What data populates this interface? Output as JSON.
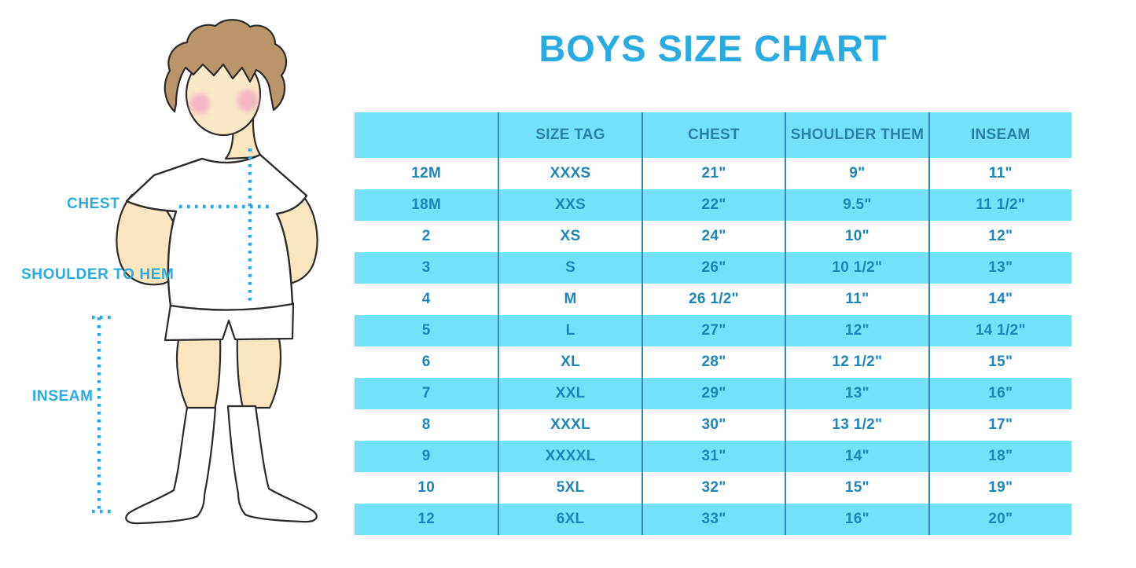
{
  "title": "BOYS SIZE CHART",
  "figure": {
    "labels": {
      "chest": "CHEST",
      "shoulder_to_hem": "SHOULDER TO HEM",
      "inseam": "INSEAM"
    }
  },
  "colors": {
    "accent_blue": "#29ABE2",
    "table_row_cyan": "#74E1F9",
    "table_text_blue": "#1C86BC",
    "table_header_text": "#2B80A8",
    "table_divider": "#2F8CB5",
    "skin": "#F9E5BE",
    "hair": "#BB9569",
    "blush": "#F2AEC2",
    "outline": "#2b2b2b"
  },
  "chart_data": {
    "type": "table",
    "title": "BOYS SIZE CHART",
    "columns": [
      "",
      "SIZE TAG",
      "CHEST",
      "SHOULDER THEM",
      "INSEAM"
    ],
    "rows": [
      [
        "12M",
        "XXXS",
        "21\"",
        "9\"",
        "11\""
      ],
      [
        "18M",
        "XXS",
        "22\"",
        "9.5\"",
        "11 1/2\""
      ],
      [
        "2",
        "XS",
        "24\"",
        "10\"",
        "12\""
      ],
      [
        "3",
        "S",
        "26\"",
        "10 1/2\"",
        "13\""
      ],
      [
        "4",
        "M",
        "26 1/2\"",
        "11\"",
        "14\""
      ],
      [
        "5",
        "L",
        "27\"",
        "12\"",
        "14 1/2\""
      ],
      [
        "6",
        "XL",
        "28\"",
        "12 1/2\"",
        "15\""
      ],
      [
        "7",
        "XXL",
        "29\"",
        "13\"",
        "16\""
      ],
      [
        "8",
        "XXXL",
        "30\"",
        "13 1/2\"",
        "17\""
      ],
      [
        "9",
        "XXXXL",
        "31\"",
        "14\"",
        "18\""
      ],
      [
        "10",
        "5XL",
        "32\"",
        "15\"",
        "19\""
      ],
      [
        "12",
        "6XL",
        "33\"",
        "16\"",
        "20\""
      ]
    ],
    "row_striping": "alternating white / cyan, header cyan",
    "grid": "vertical dividers only"
  }
}
